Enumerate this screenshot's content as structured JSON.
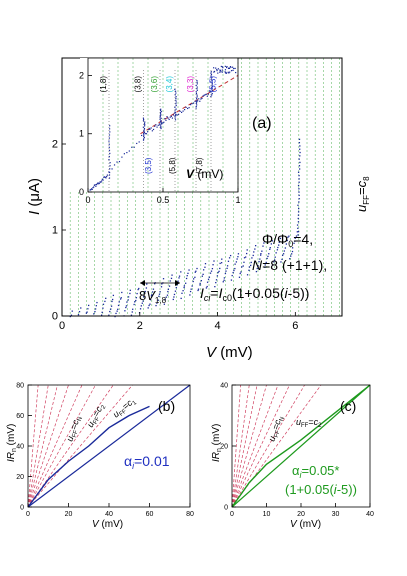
{
  "chart_data": [
    {
      "panel": "(a)",
      "type": "scatter",
      "xlabel": "V (mV)",
      "ylabel": "I (μA)",
      "xlim": [
        0,
        7.2
      ],
      "ylim": [
        0,
        3.0
      ],
      "xticks": [
        0,
        2,
        4,
        6
      ],
      "yticks": [
        0,
        1,
        2
      ],
      "annotations": [
        "Φ/Φ0=4,",
        "N=8 (+1+1),",
        "I_ci=I_c0(1+0.05(i-5))",
        "u_FF=c_8",
        "8V_1,8"
      ],
      "series": [
        {
          "color": "#1a2a9a",
          "curve_segments": [
            {
              "x_start": 0.05,
              "x_end": 6.05,
              "y_start": 0.0,
              "y_end": 0.95
            },
            {
              "x_start": 6.05,
              "x_end": 6.1,
              "y_start": 0.95,
              "y_end": 2.1
            }
          ]
        }
      ],
      "vertical_lines": {
        "color": "#4caf50",
        "spacing_mV": 0.21
      },
      "grid": false
    },
    {
      "panel": "inset of (a)",
      "type": "scatter",
      "xlabel": "V (mV)",
      "xlim": [
        0,
        1.0
      ],
      "ylim": [
        0,
        2.3
      ],
      "xticks": [
        0,
        0.5,
        1
      ],
      "yticks": [
        0,
        1,
        2
      ],
      "dashed_fit_color": "#c03030",
      "resonance_labels": [
        {
          "text": "(1,8)",
          "x": 0.14,
          "color": "#000000"
        },
        {
          "text": "(3,8)",
          "x": 0.37,
          "color": "#000000"
        },
        {
          "text": "(3,6)",
          "x": 0.48,
          "color": "#2e9e2e"
        },
        {
          "text": "(3,4)",
          "x": 0.58,
          "color": "#1ec8d8"
        },
        {
          "text": "(3,3)",
          "x": 0.72,
          "color": "#e020d0"
        },
        {
          "text": "(5,5)",
          "x": 0.87,
          "color": "#2030d0"
        },
        {
          "text": "(3,5)",
          "x": 0.44,
          "color": "#2030d0"
        },
        {
          "text": "(5,8)",
          "x": 0.6,
          "color": "#000000"
        },
        {
          "text": "(7,8)",
          "x": 0.78,
          "color": "#000000"
        }
      ],
      "steps": [
        {
          "x": 0.14,
          "y_from": 0.25,
          "y_to": 1.2
        },
        {
          "x": 0.37,
          "y_from": 0.9,
          "y_to": 1.3
        },
        {
          "x": 0.48,
          "y_from": 1.1,
          "y_to": 1.45
        },
        {
          "x": 0.58,
          "y_from": 1.25,
          "y_to": 1.8
        },
        {
          "x": 0.72,
          "y_from": 1.45,
          "y_to": 1.95
        },
        {
          "x": 0.82,
          "y_from": 1.65,
          "y_to": 2.1
        }
      ]
    },
    {
      "panel": "(b)",
      "type": "line",
      "xlabel": "V (mV)",
      "ylabel": "IR_n (mV)",
      "xlim": [
        0,
        80
      ],
      "ylim": [
        0,
        80
      ],
      "xticks": [
        0,
        20,
        40,
        60,
        80
      ],
      "yticks": [
        0,
        20,
        40,
        60,
        80
      ],
      "label": "α_i=0.01",
      "label_color": "#2030c0",
      "resonance_slopes": [
        16,
        8,
        5.5,
        4,
        3,
        2.4,
        1.9,
        1.55
      ],
      "annotations": [
        "u_FF=c_1",
        "u_FF=c_2",
        "u_FF=c_N"
      ],
      "data_curve": [
        [
          0,
          0
        ],
        [
          10,
          18
        ],
        [
          20,
          30
        ],
        [
          30,
          40
        ],
        [
          40,
          52
        ],
        [
          50,
          60
        ],
        [
          60,
          66
        ]
      ],
      "ohmic_line": [
        [
          0,
          0
        ],
        [
          80,
          80
        ]
      ]
    },
    {
      "panel": "(c)",
      "type": "line",
      "xlabel": "V (mV)",
      "ylabel": "IR_n (mV)",
      "xlim": [
        0,
        40
      ],
      "ylim": [
        0,
        40
      ],
      "xticks": [
        0,
        10,
        20,
        30,
        40
      ],
      "yticks": [
        0,
        20,
        40
      ],
      "label_line1": "α_i=0.05*",
      "label_line2": "(1+0.05(i-5))",
      "label_color": "#1e9a1e",
      "resonance_slopes": [
        16,
        8,
        5.5,
        4,
        3,
        2.4,
        1.9,
        1.55
      ],
      "annotations": [
        "u_FF=c_2",
        "u_FF=c_N"
      ],
      "data_curve": [
        [
          0,
          0
        ],
        [
          5,
          8
        ],
        [
          10,
          14
        ],
        [
          20,
          22
        ],
        [
          30,
          31
        ],
        [
          40,
          40
        ]
      ],
      "ohmic_line": [
        [
          0,
          0
        ],
        [
          40,
          40
        ]
      ]
    }
  ]
}
